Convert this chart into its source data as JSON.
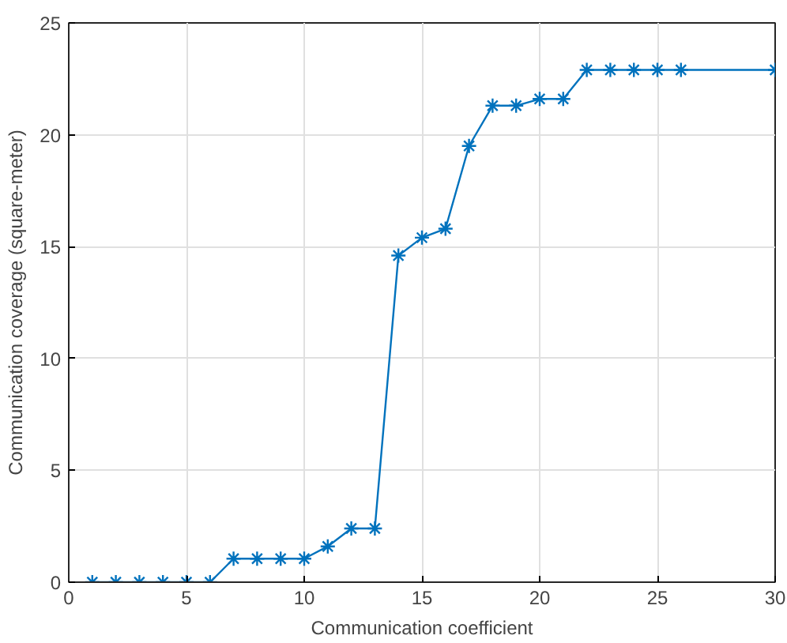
{
  "chart_data": {
    "type": "line",
    "xlabel": "Communication coefficient",
    "ylabel": "Communication coverage (square-meter)",
    "x": [
      1,
      2,
      3,
      4,
      5,
      6,
      7,
      8,
      9,
      10,
      11,
      12,
      13,
      14,
      15,
      16,
      17,
      18,
      19,
      20,
      21,
      22,
      23,
      24,
      25,
      26,
      30
    ],
    "series": [
      {
        "color": "#0072bd",
        "values": [
          0,
          0,
          0,
          0,
          0,
          0,
          1.05,
          1.05,
          1.05,
          1.05,
          1.6,
          2.4,
          2.4,
          14.6,
          15.4,
          15.8,
          19.5,
          21.3,
          21.3,
          21.6,
          21.6,
          22.9,
          22.9,
          22.9,
          22.9,
          22.9,
          22.9
        ]
      }
    ],
    "xlim": [
      0,
      30
    ],
    "ylim": [
      0,
      25
    ],
    "xticks": [
      0,
      5,
      10,
      15,
      20,
      25,
      30
    ],
    "yticks": [
      0,
      5,
      10,
      15,
      20,
      25
    ],
    "grid": true,
    "marker": "cross",
    "line_style": "solid"
  }
}
